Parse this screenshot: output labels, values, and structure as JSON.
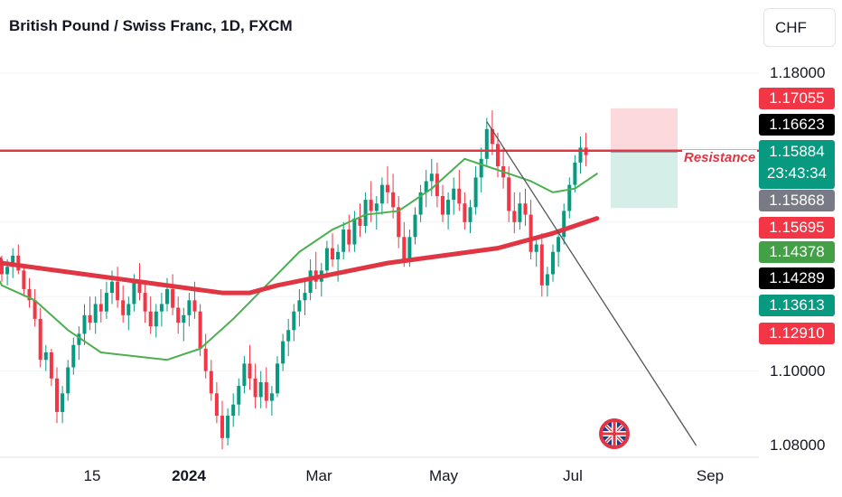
{
  "title": "British Pound / Swiss Franc, 1D, FXCM",
  "currency": "CHF",
  "price_axis": [
    {
      "value": 1.18,
      "label": "1.18000"
    },
    {
      "value": 1.1,
      "label": "1.10000"
    },
    {
      "value": 1.08,
      "label": "1.08000"
    }
  ],
  "price_badges": [
    {
      "value": 1.17055,
      "label": "1.17055",
      "color": "#f23645"
    },
    {
      "value": 1.16623,
      "label": "1.16623",
      "color": "#000000"
    },
    {
      "value": 1.15884,
      "label": "1.15884",
      "sublabel": "23:43:34",
      "color": "#089981"
    },
    {
      "value": 1.15868,
      "label": "1.15868",
      "color": "#787b86"
    },
    {
      "value": 1.15695,
      "label": "1.15695",
      "color": "#f23645"
    },
    {
      "value": 1.14378,
      "label": "1.14378",
      "color": "#43a047"
    },
    {
      "value": 1.14289,
      "label": "1.14289",
      "color": "#000000"
    },
    {
      "value": 1.13613,
      "label": "1.13613",
      "color": "#089981"
    },
    {
      "value": 1.1291,
      "label": "1.1291",
      "display": "1.12910",
      "color": "#f23645"
    }
  ],
  "time_axis": [
    {
      "label": "15",
      "bold": false
    },
    {
      "label": "2024",
      "bold": true
    },
    {
      "label": "Mar",
      "bold": false
    },
    {
      "label": "May",
      "bold": false
    },
    {
      "label": "Jul",
      "bold": false
    },
    {
      "label": "Sep",
      "bold": false
    }
  ],
  "annotation": {
    "text": "Resistance",
    "price": 1.1592,
    "color": "#e03542"
  },
  "colors": {
    "up": "#089981",
    "down": "#f23645",
    "ma_fast": "#4caf50",
    "ma_slow": "#e03542",
    "stop_zone": "#fcd9dc",
    "target_zone": "#d6eee8",
    "trendline": "#555555"
  },
  "icon": "union-jack-flag-icon",
  "chart_data": {
    "type": "candlestick",
    "title": "British Pound / Swiss Franc, 1D, FXCM",
    "ylim": [
      1.078,
      1.185
    ],
    "ohlc": [
      [
        1.129,
        1.131,
        1.124,
        1.126
      ],
      [
        1.126,
        1.13,
        1.123,
        1.128
      ],
      [
        1.128,
        1.133,
        1.125,
        1.131
      ],
      [
        1.131,
        1.134,
        1.126,
        1.127
      ],
      [
        1.127,
        1.128,
        1.12,
        1.122
      ],
      [
        1.122,
        1.125,
        1.117,
        1.119
      ],
      [
        1.119,
        1.122,
        1.112,
        1.114
      ],
      [
        1.114,
        1.117,
        1.101,
        1.103
      ],
      [
        1.103,
        1.107,
        1.1,
        1.105
      ],
      [
        1.105,
        1.106,
        1.096,
        1.098
      ],
      [
        1.098,
        1.101,
        1.086,
        1.089
      ],
      [
        1.089,
        1.096,
        1.086,
        1.094
      ],
      [
        1.094,
        1.103,
        1.092,
        1.101
      ],
      [
        1.101,
        1.109,
        1.099,
        1.107
      ],
      [
        1.107,
        1.112,
        1.103,
        1.11
      ],
      [
        1.11,
        1.118,
        1.107,
        1.115
      ],
      [
        1.115,
        1.12,
        1.111,
        1.113
      ],
      [
        1.113,
        1.12,
        1.11,
        1.118
      ],
      [
        1.118,
        1.122,
        1.113,
        1.116
      ],
      [
        1.116,
        1.124,
        1.114,
        1.121
      ],
      [
        1.121,
        1.127,
        1.118,
        1.124
      ],
      [
        1.124,
        1.128,
        1.117,
        1.119
      ],
      [
        1.119,
        1.123,
        1.113,
        1.115
      ],
      [
        1.115,
        1.12,
        1.111,
        1.118
      ],
      [
        1.118,
        1.126,
        1.116,
        1.124
      ],
      [
        1.124,
        1.129,
        1.119,
        1.121
      ],
      [
        1.121,
        1.124,
        1.113,
        1.116
      ],
      [
        1.116,
        1.12,
        1.11,
        1.112
      ],
      [
        1.112,
        1.118,
        1.109,
        1.116
      ],
      [
        1.116,
        1.121,
        1.112,
        1.118
      ],
      [
        1.118,
        1.125,
        1.116,
        1.122
      ],
      [
        1.122,
        1.126,
        1.115,
        1.117
      ],
      [
        1.117,
        1.12,
        1.11,
        1.113
      ],
      [
        1.113,
        1.117,
        1.108,
        1.115
      ],
      [
        1.115,
        1.121,
        1.112,
        1.119
      ],
      [
        1.119,
        1.124,
        1.114,
        1.116
      ],
      [
        1.116,
        1.118,
        1.104,
        1.106
      ],
      [
        1.106,
        1.11,
        1.098,
        1.1
      ],
      [
        1.1,
        1.103,
        1.092,
        1.094
      ],
      [
        1.094,
        1.097,
        1.086,
        1.088
      ],
      [
        1.088,
        1.092,
        1.079,
        1.082
      ],
      [
        1.082,
        1.09,
        1.08,
        1.088
      ],
      [
        1.088,
        1.094,
        1.085,
        1.091
      ],
      [
        1.091,
        1.098,
        1.088,
        1.096
      ],
      [
        1.096,
        1.104,
        1.094,
        1.102
      ],
      [
        1.102,
        1.107,
        1.095,
        1.098
      ],
      [
        1.098,
        1.102,
        1.09,
        1.093
      ],
      [
        1.093,
        1.1,
        1.09,
        1.097
      ],
      [
        1.097,
        1.101,
        1.09,
        1.092
      ],
      [
        1.092,
        1.096,
        1.088,
        1.094
      ],
      [
        1.094,
        1.104,
        1.093,
        1.102
      ],
      [
        1.102,
        1.11,
        1.1,
        1.108
      ],
      [
        1.108,
        1.114,
        1.104,
        1.111
      ],
      [
        1.111,
        1.118,
        1.108,
        1.116
      ],
      [
        1.116,
        1.122,
        1.112,
        1.119
      ],
      [
        1.119,
        1.124,
        1.115,
        1.121
      ],
      [
        1.121,
        1.13,
        1.119,
        1.127
      ],
      [
        1.127,
        1.132,
        1.122,
        1.124
      ],
      [
        1.124,
        1.129,
        1.12,
        1.127
      ],
      [
        1.127,
        1.135,
        1.125,
        1.133
      ],
      [
        1.133,
        1.137,
        1.128,
        1.13
      ],
      [
        1.13,
        1.134,
        1.124,
        1.132
      ],
      [
        1.132,
        1.14,
        1.13,
        1.138
      ],
      [
        1.138,
        1.142,
        1.132,
        1.134
      ],
      [
        1.134,
        1.143,
        1.132,
        1.141
      ],
      [
        1.141,
        1.145,
        1.136,
        1.139
      ],
      [
        1.139,
        1.148,
        1.137,
        1.146
      ],
      [
        1.146,
        1.151,
        1.14,
        1.143
      ],
      [
        1.143,
        1.147,
        1.138,
        1.145
      ],
      [
        1.145,
        1.152,
        1.142,
        1.15
      ],
      [
        1.15,
        1.155,
        1.145,
        1.148
      ],
      [
        1.148,
        1.153,
        1.141,
        1.144
      ],
      [
        1.144,
        1.147,
        1.133,
        1.136
      ],
      [
        1.136,
        1.14,
        1.128,
        1.13
      ],
      [
        1.13,
        1.138,
        1.128,
        1.136
      ],
      [
        1.136,
        1.144,
        1.134,
        1.142
      ],
      [
        1.142,
        1.15,
        1.14,
        1.148
      ],
      [
        1.148,
        1.154,
        1.144,
        1.151
      ],
      [
        1.151,
        1.157,
        1.147,
        1.153
      ],
      [
        1.153,
        1.156,
        1.144,
        1.147
      ],
      [
        1.147,
        1.15,
        1.14,
        1.142
      ],
      [
        1.142,
        1.148,
        1.138,
        1.146
      ],
      [
        1.146,
        1.152,
        1.142,
        1.149
      ],
      [
        1.149,
        1.154,
        1.143,
        1.145
      ],
      [
        1.145,
        1.148,
        1.138,
        1.14
      ],
      [
        1.14,
        1.146,
        1.137,
        1.144
      ],
      [
        1.144,
        1.155,
        1.142,
        1.152
      ],
      [
        1.152,
        1.16,
        1.148,
        1.157
      ],
      [
        1.157,
        1.168,
        1.155,
        1.165
      ],
      [
        1.165,
        1.17,
        1.158,
        1.161
      ],
      [
        1.161,
        1.164,
        1.152,
        1.155
      ],
      [
        1.155,
        1.16,
        1.149,
        1.152
      ],
      [
        1.152,
        1.155,
        1.14,
        1.143
      ],
      [
        1.143,
        1.148,
        1.137,
        1.14
      ],
      [
        1.14,
        1.148,
        1.138,
        1.145
      ],
      [
        1.145,
        1.149,
        1.139,
        1.142
      ],
      [
        1.142,
        1.146,
        1.13,
        1.132
      ],
      [
        1.132,
        1.136,
        1.128,
        1.134
      ],
      [
        1.134,
        1.137,
        1.12,
        1.123
      ],
      [
        1.123,
        1.128,
        1.12,
        1.126
      ],
      [
        1.126,
        1.134,
        1.124,
        1.132
      ],
      [
        1.132,
        1.138,
        1.128,
        1.136
      ],
      [
        1.136,
        1.145,
        1.134,
        1.143
      ],
      [
        1.143,
        1.152,
        1.141,
        1.15
      ],
      [
        1.15,
        1.158,
        1.148,
        1.156
      ],
      [
        1.156,
        1.163,
        1.153,
        1.16
      ],
      [
        1.16,
        1.164,
        1.155,
        1.158
      ]
    ],
    "series": [
      {
        "name": "MA fast",
        "color": "#4caf50",
        "points": [
          [
            0,
            1.123
          ],
          [
            6,
            1.119
          ],
          [
            12,
            1.111
          ],
          [
            18,
            1.105
          ],
          [
            24,
            1.104
          ],
          [
            30,
            1.103
          ],
          [
            36,
            1.106
          ],
          [
            42,
            1.114
          ],
          [
            48,
            1.123
          ],
          [
            54,
            1.132
          ],
          [
            60,
            1.138
          ],
          [
            66,
            1.142
          ],
          [
            72,
            1.143
          ],
          [
            78,
            1.149
          ],
          [
            84,
            1.157
          ],
          [
            88,
            1.155
          ],
          [
            92,
            1.153
          ],
          [
            96,
            1.151
          ],
          [
            100,
            1.148
          ],
          [
            104,
            1.149
          ],
          [
            108,
            1.153
          ]
        ]
      },
      {
        "name": "MA slow",
        "color": "#e03542",
        "points": [
          [
            0,
            1.129
          ],
          [
            10,
            1.127
          ],
          [
            20,
            1.125
          ],
          [
            30,
            1.123
          ],
          [
            40,
            1.121
          ],
          [
            45,
            1.121
          ],
          [
            50,
            1.123
          ],
          [
            60,
            1.126
          ],
          [
            70,
            1.129
          ],
          [
            80,
            1.131
          ],
          [
            90,
            1.133
          ],
          [
            100,
            1.137
          ],
          [
            108,
            1.141
          ]
        ]
      }
    ],
    "trendline": {
      "from": [
        88,
        1.167
      ],
      "to": [
        126,
        1.08
      ]
    },
    "position": {
      "entry": 1.15884,
      "stop": 1.17055,
      "target": 1.14378
    }
  }
}
